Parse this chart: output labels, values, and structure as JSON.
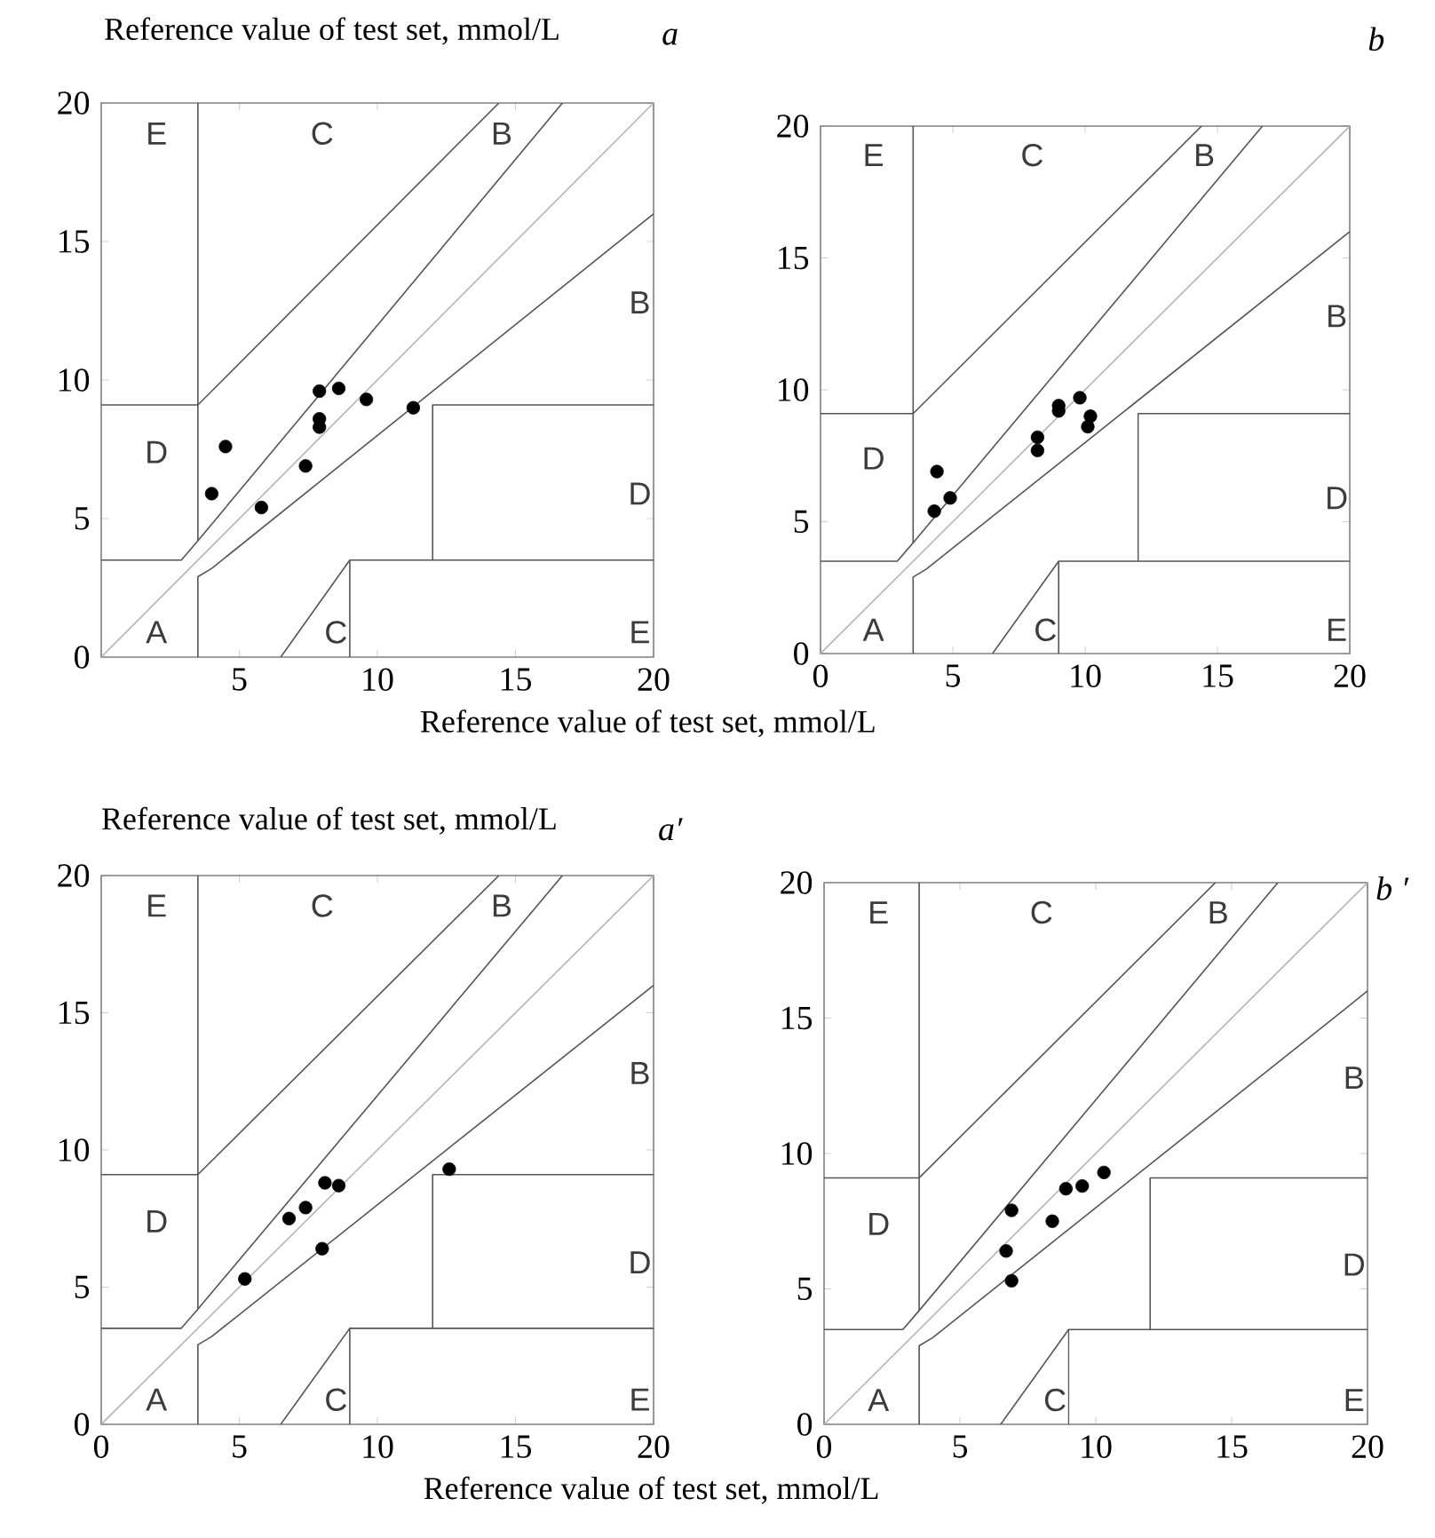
{
  "chart_data": [
    {
      "type": "scatter",
      "title": "a",
      "ylabel": "Reference value of test set, mmol/L",
      "xlabel": "Reference value of test set, mmol/L",
      "grid": false,
      "xlim": [
        0,
        20
      ],
      "ylim": [
        0,
        20
      ],
      "xticks": [
        {
          "value": 0,
          "label": null
        },
        5,
        10,
        15,
        20
      ],
      "yticks": [
        0,
        5,
        10,
        15,
        20
      ],
      "series": [
        {
          "type": "line",
          "color": "#b4b4b4",
          "x": [
            0,
            20
          ],
          "values": [
            0,
            20
          ]
        },
        {
          "type": "line",
          "color": "#555555",
          "x": [
            0,
            3.5,
            14.4
          ],
          "values": [
            9.1,
            9.1,
            20
          ]
        },
        {
          "type": "line",
          "color": "#555555",
          "x": [
            0,
            2.9,
            3.5,
            16.7
          ],
          "values": [
            3.5,
            3.5,
            4.2,
            20
          ]
        },
        {
          "type": "line",
          "color": "#555555",
          "x": [
            3.5,
            3.5
          ],
          "values": [
            4.2,
            20
          ]
        },
        {
          "type": "line",
          "color": "#555555",
          "x": [
            3.5,
            3.5,
            4.0,
            20
          ],
          "values": [
            0,
            2.9,
            3.2,
            16
          ]
        },
        {
          "type": "line",
          "color": "#555555",
          "x": [
            6.5,
            9,
            20
          ],
          "values": [
            0,
            3.5,
            3.5
          ]
        },
        {
          "type": "line",
          "color": "#555555",
          "x": [
            9,
            9
          ],
          "values": [
            0,
            3.5
          ]
        },
        {
          "type": "line",
          "color": "#555555",
          "x": [
            20,
            12,
            12
          ],
          "values": [
            9.1,
            9.1,
            3.5
          ]
        },
        {
          "color": "#000000",
          "x": [
            4.0,
            4.5,
            5.8,
            7.9,
            8.6,
            7.9,
            7.9,
            7.4,
            9.6,
            11.3
          ],
          "values": [
            5.9,
            7.6,
            5.4,
            9.6,
            9.7,
            8.6,
            8.3,
            6.9,
            9.3,
            9.0
          ]
        }
      ],
      "annotations": [
        "E",
        "C",
        "B",
        "B",
        "D",
        "D",
        "A",
        "C",
        "E"
      ]
    },
    {
      "type": "scatter",
      "title": "b",
      "grid": false,
      "xlim": [
        0,
        20
      ],
      "ylim": [
        0,
        20
      ],
      "xticks": [
        0,
        5,
        10,
        15,
        20
      ],
      "yticks": [
        0,
        5,
        10,
        15,
        20
      ],
      "series": [
        {
          "type": "line",
          "color": "#b4b4b4",
          "x": [
            0,
            20
          ],
          "values": [
            0,
            20
          ]
        },
        {
          "type": "line",
          "color": "#555555",
          "x": [
            0,
            3.5,
            14.4
          ],
          "values": [
            9.1,
            9.1,
            20
          ]
        },
        {
          "type": "line",
          "color": "#555555",
          "x": [
            0,
            2.9,
            3.5,
            16.7
          ],
          "values": [
            3.5,
            3.5,
            4.2,
            20
          ]
        },
        {
          "type": "line",
          "color": "#555555",
          "x": [
            3.5,
            3.5
          ],
          "values": [
            4.2,
            20
          ]
        },
        {
          "type": "line",
          "color": "#555555",
          "x": [
            3.5,
            3.5,
            4.0,
            20
          ],
          "values": [
            0,
            2.9,
            3.2,
            16
          ]
        },
        {
          "type": "line",
          "color": "#555555",
          "x": [
            6.5,
            9,
            20
          ],
          "values": [
            0,
            3.5,
            3.5
          ]
        },
        {
          "type": "line",
          "color": "#555555",
          "x": [
            9,
            9
          ],
          "values": [
            0,
            3.5
          ]
        },
        {
          "type": "line",
          "color": "#555555",
          "x": [
            20,
            12,
            12
          ],
          "values": [
            9.1,
            9.1,
            3.5
          ]
        },
        {
          "color": "#000000",
          "x": [
            4.4,
            4.3,
            4.9,
            8.2,
            8.2,
            9.0,
            9.0,
            9.8,
            10.2,
            10.1
          ],
          "values": [
            6.9,
            5.4,
            5.9,
            8.2,
            7.7,
            9.4,
            9.2,
            9.7,
            9.0,
            8.6
          ]
        }
      ],
      "annotations": [
        "E",
        "C",
        "B",
        "B",
        "D",
        "D",
        "A",
        "C",
        "E"
      ]
    },
    {
      "type": "scatter",
      "title": "a′",
      "ylabel": "Reference value of test set, mmol/L",
      "xlabel": "Reference value of test set, mmol/L",
      "grid": false,
      "xlim": [
        0,
        20
      ],
      "ylim": [
        0,
        20
      ],
      "xticks": [
        0,
        5,
        10,
        15,
        20
      ],
      "yticks": [
        0,
        5,
        10,
        15,
        20
      ],
      "series": [
        {
          "type": "line",
          "color": "#b4b4b4",
          "x": [
            0,
            20
          ],
          "values": [
            0,
            20
          ]
        },
        {
          "type": "line",
          "color": "#555555",
          "x": [
            0,
            3.5,
            14.4
          ],
          "values": [
            9.1,
            9.1,
            20
          ]
        },
        {
          "type": "line",
          "color": "#555555",
          "x": [
            0,
            2.9,
            3.5,
            16.7
          ],
          "values": [
            3.5,
            3.5,
            4.2,
            20
          ]
        },
        {
          "type": "line",
          "color": "#555555",
          "x": [
            3.5,
            3.5
          ],
          "values": [
            4.2,
            20
          ]
        },
        {
          "type": "line",
          "color": "#555555",
          "x": [
            3.5,
            3.5,
            4.0,
            20
          ],
          "values": [
            0,
            2.9,
            3.2,
            16
          ]
        },
        {
          "type": "line",
          "color": "#555555",
          "x": [
            6.5,
            9,
            20
          ],
          "values": [
            0,
            3.5,
            3.5
          ]
        },
        {
          "type": "line",
          "color": "#555555",
          "x": [
            9,
            9
          ],
          "values": [
            0,
            3.5
          ]
        },
        {
          "type": "line",
          "color": "#555555",
          "x": [
            20,
            12,
            12
          ],
          "values": [
            9.1,
            9.1,
            3.5
          ]
        },
        {
          "color": "#000000",
          "x": [
            5.2,
            6.8,
            7.4,
            8.1,
            8.6,
            8.0,
            12.6
          ],
          "values": [
            5.3,
            7.5,
            7.9,
            8.8,
            8.7,
            6.4,
            9.3
          ]
        }
      ],
      "annotations": [
        "E",
        "C",
        "B",
        "B",
        "D",
        "D",
        "A",
        "C",
        "E"
      ]
    },
    {
      "type": "scatter",
      "title": "b ′",
      "grid": false,
      "xlim": [
        0,
        20
      ],
      "ylim": [
        0,
        20
      ],
      "xticks": [
        0,
        5,
        10,
        15,
        20
      ],
      "yticks": [
        0,
        5,
        10,
        15,
        20
      ],
      "series": [
        {
          "type": "line",
          "color": "#b4b4b4",
          "x": [
            0,
            20
          ],
          "values": [
            0,
            20
          ]
        },
        {
          "type": "line",
          "color": "#555555",
          "x": [
            0,
            3.5,
            14.4
          ],
          "values": [
            9.1,
            9.1,
            20
          ]
        },
        {
          "type": "line",
          "color": "#555555",
          "x": [
            0,
            2.9,
            3.5,
            16.7
          ],
          "values": [
            3.5,
            3.5,
            4.2,
            20
          ]
        },
        {
          "type": "line",
          "color": "#555555",
          "x": [
            3.5,
            3.5
          ],
          "values": [
            4.2,
            20
          ]
        },
        {
          "type": "line",
          "color": "#555555",
          "x": [
            3.5,
            3.5,
            4.0,
            20
          ],
          "values": [
            0,
            2.9,
            3.2,
            16
          ]
        },
        {
          "type": "line",
          "color": "#555555",
          "x": [
            6.5,
            9,
            20
          ],
          "values": [
            0,
            3.5,
            3.5
          ]
        },
        {
          "type": "line",
          "color": "#555555",
          "x": [
            9,
            9
          ],
          "values": [
            0,
            3.5
          ]
        },
        {
          "type": "line",
          "color": "#555555",
          "x": [
            20,
            12,
            12
          ],
          "values": [
            9.1,
            9.1,
            3.5
          ]
        },
        {
          "color": "#000000",
          "x": [
            6.9,
            6.7,
            6.9,
            8.4,
            8.9,
            9.5,
            10.3
          ],
          "values": [
            7.9,
            6.4,
            5.3,
            7.5,
            8.7,
            8.8,
            9.3
          ]
        }
      ],
      "annotations": [
        "E",
        "C",
        "B",
        "B",
        "D",
        "D",
        "A",
        "C",
        "E"
      ]
    }
  ]
}
